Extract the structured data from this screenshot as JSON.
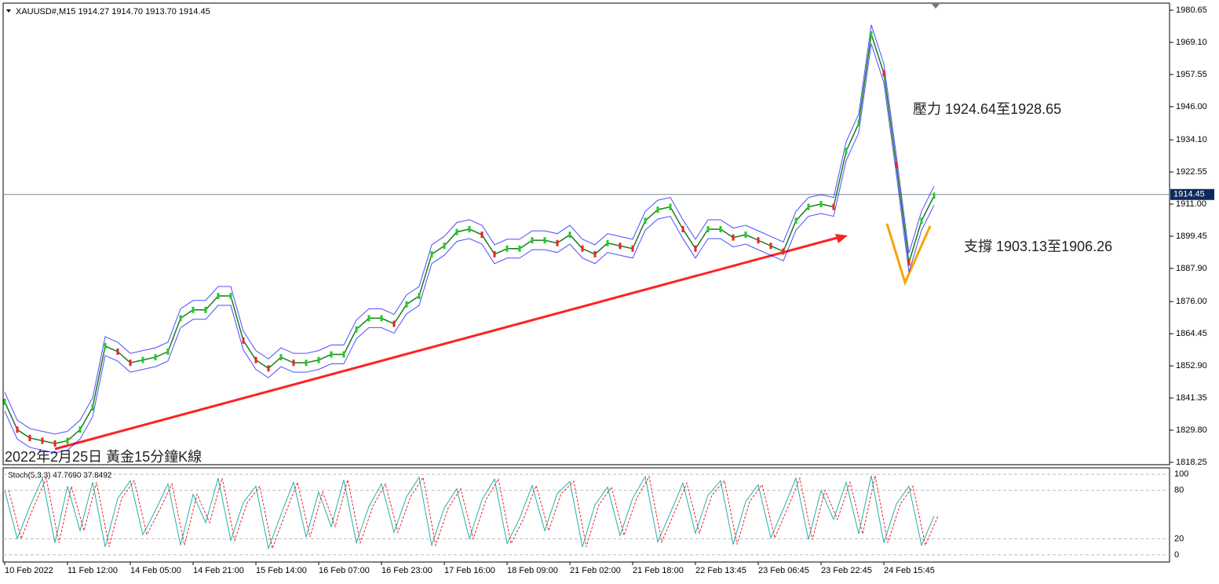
{
  "header": "XAUUSD#,M15  1914.27 1914.70 1913.70 1914.45",
  "caption": "2022年2月25日 黃金15分鐘K線",
  "resistance": "壓力 1924.64至1928.65",
  "support": "支撐 1903.13至1906.26",
  "current_price": {
    "value": 1914.45,
    "label": "1914.45"
  },
  "price_axis": {
    "ylim": [
      1817.4,
      1982.9
    ],
    "yticks": [
      1980.65,
      {
        "value": 1969.1,
        "label": "1969.10"
      },
      1957.55,
      {
        "value": 1946,
        "label": "1946.00"
      },
      {
        "value": 1934.1,
        "label": "1934.10"
      },
      1922.55,
      {
        "value": 1911,
        "label": "1911.00"
      },
      1899.45,
      {
        "value": 1887.9,
        "label": "1887.90"
      },
      {
        "value": 1876,
        "label": "1876.00"
      },
      1864.45,
      {
        "value": 1852.9,
        "label": "1852.90"
      },
      1841.35,
      {
        "value": 1829.8,
        "label": "1829.80"
      },
      1818.25
    ]
  },
  "price_path": [
    1840,
    1830,
    1827,
    1826,
    1825,
    1826,
    1830,
    1838,
    1860,
    1858,
    1854,
    1855,
    1856,
    1858,
    1870,
    1873,
    1873,
    1878,
    1878,
    1862,
    1855,
    1852,
    1856,
    1854,
    1854,
    1855,
    1857,
    1857,
    1866,
    1870,
    1870,
    1868,
    1875,
    1878,
    1893,
    1896,
    1901,
    1902,
    1900,
    1893,
    1895,
    1895,
    1898,
    1898,
    1897,
    1900,
    1895,
    1893,
    1897,
    1896,
    1895,
    1905,
    1909,
    1910,
    1902,
    1895,
    1902,
    1902,
    1899,
    1900,
    1898,
    1896,
    1894,
    1905,
    1910,
    1911,
    1910,
    1930,
    1940,
    1972,
    1958,
    1925,
    1890,
    1905,
    1914
  ],
  "stoch": {
    "label": "Stoch(5,3,3) 47.7690 37.8492",
    "ylim": [
      -3,
      103
    ],
    "yticks": [
      100,
      80,
      20,
      0
    ],
    "values": [
      80,
      20,
      60,
      95,
      15,
      85,
      30,
      90,
      10,
      70,
      92,
      25,
      55,
      88,
      12,
      75,
      40,
      95,
      18,
      65,
      85,
      8,
      50,
      90,
      22,
      78,
      35,
      93,
      15,
      60,
      88,
      28,
      72,
      96,
      12,
      58,
      82,
      20,
      68,
      94,
      14,
      45,
      86,
      30,
      76,
      91,
      10,
      62,
      84,
      24,
      70,
      97,
      16,
      52,
      89,
      27,
      74,
      92,
      13,
      66,
      87,
      21,
      57,
      95,
      19,
      80,
      44,
      90,
      26,
      98,
      15,
      63,
      85,
      12,
      48
    ]
  },
  "time_labels": [
    "10 Feb 2022",
    "11 Feb 12:00",
    "14 Feb 05:00",
    "14 Feb 21:00",
    "15 Feb 14:00",
    "16 Feb 07:00",
    "16 Feb 23:00",
    "17 Feb 16:00",
    "18 Feb 09:00",
    "21 Feb 02:00",
    "21 Feb 18:00",
    "22 Feb 13:45",
    "23 Feb 06:45",
    "23 Feb 22:45",
    "24 Feb 15:45"
  ]
}
